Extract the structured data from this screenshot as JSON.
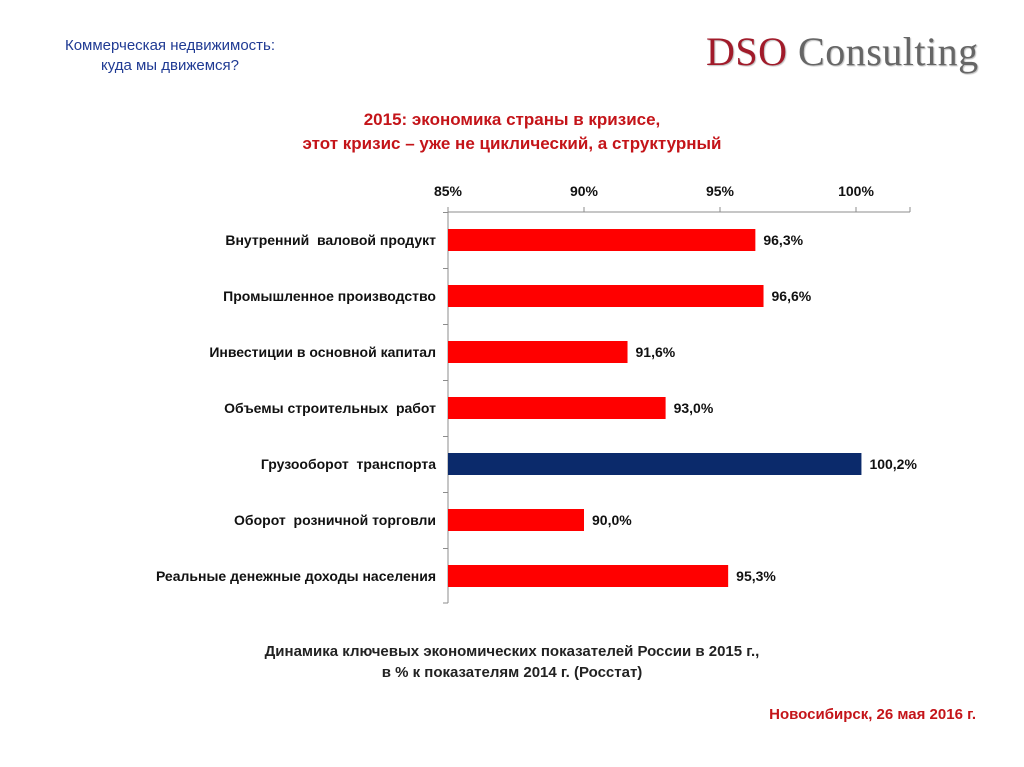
{
  "header": {
    "line1": "Коммерческая недвижимость:",
    "line2": "куда мы движемся?"
  },
  "logo": {
    "part1": "DSO",
    "part2": "Consulting"
  },
  "main_title": {
    "line1": "2015: экономика страны в кризисе,",
    "line2": "этот кризис – уже не циклический, а структурный"
  },
  "chart_data": {
    "type": "bar",
    "orientation": "horizontal",
    "categories": [
      "Внутренний  валовой продукт",
      "Промышленное производство",
      "Инвестиции в основной капитал",
      "Объемы строительных  работ",
      "Грузооборот  транспорта",
      "Оборот  розничной торговли",
      "Реальные денежные доходы населения"
    ],
    "values": [
      96.3,
      96.6,
      91.6,
      93.0,
      100.2,
      90.0,
      95.3
    ],
    "data_labels": [
      "96,3%",
      "96,6%",
      "91,6%",
      "93,0%",
      "100,2%",
      "90,0%",
      "95,3%"
    ],
    "xlim": [
      85,
      102
    ],
    "ticks": [
      85,
      90,
      95,
      100
    ],
    "tick_labels": [
      "85%",
      "90%",
      "95%",
      "100%"
    ],
    "axis_position": "top",
    "grid": false,
    "colors": {
      "default": "#ff0000",
      "highlight": "#0b2a6b",
      "highlight_index": 4
    }
  },
  "caption": {
    "line1": "Динамика ключевых экономических показателей России в 2015 г.,",
    "line2": "в %  к показателям 2014 г. (Росстат)"
  },
  "footer": {
    "text": "Новосибирск, 26 мая 2016 г."
  }
}
